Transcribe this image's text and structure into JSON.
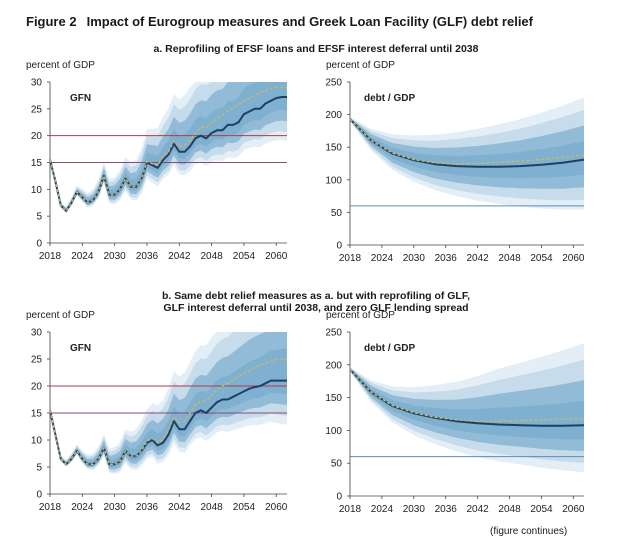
{
  "figure": {
    "number": "Figure 2",
    "title": "Impact of Eurogroup measures and Greek Loan Facility (GLF) debt relief",
    "subtitle_a": "a. Reprofiling of EFSF loans and EFSF interest deferral until 2038",
    "subtitle_b_line1": "b. Same debt relief measures as a. but with reprofiling of GLF,",
    "subtitle_b_line2": "GLF interest deferral until 2038, and zero GLF lending spread",
    "continues": "(figure continues)"
  },
  "colors": {
    "central": "#1f3f66",
    "dashed": "#c8b86a",
    "fan_light": "#e4eef6",
    "fan_mid": "#c6dceb",
    "fan_dark": "#7fb0cf",
    "ref_red": "#b23a48",
    "ref_purple": "#8a4a78",
    "ref_blue": "#5b8db8"
  },
  "chart_data": [
    {
      "id": "a-gfn",
      "type": "area",
      "panel_label": "GFN",
      "ylabel": "percent of GDP",
      "xlim": [
        2018,
        2062
      ],
      "ylim": [
        0,
        30
      ],
      "xticks": [
        "2018",
        "2024",
        "2030",
        "2036",
        "2042",
        "2048",
        "2054",
        "2060"
      ],
      "yticks": [
        "0",
        "5",
        "10",
        "15",
        "20",
        "25",
        "30"
      ],
      "reference_lines": [
        {
          "y": 20,
          "color": "ref_red"
        },
        {
          "y": 15,
          "color": "ref_purple"
        }
      ],
      "x": [
        2018,
        2019,
        2020,
        2021,
        2022,
        2023,
        2024,
        2025,
        2026,
        2027,
        2028,
        2029,
        2030,
        2031,
        2032,
        2033,
        2034,
        2035,
        2036,
        2037,
        2038,
        2039,
        2040,
        2041,
        2042,
        2043,
        2044,
        2045,
        2046,
        2047,
        2048,
        2049,
        2050,
        2051,
        2052,
        2053,
        2054,
        2055,
        2056,
        2057,
        2058,
        2059,
        2060,
        2061,
        2062
      ],
      "central": [
        15.5,
        11.5,
        7,
        6,
        7.5,
        9.5,
        8.5,
        7.5,
        8,
        9.5,
        12.5,
        9,
        9,
        10,
        12,
        10.5,
        10.5,
        12,
        15,
        14.5,
        14,
        15.5,
        16.5,
        18.5,
        17,
        17,
        18,
        19.5,
        20,
        19.5,
        20.5,
        21,
        21,
        22,
        22,
        22.5,
        24,
        24.5,
        25,
        25,
        26,
        26.5,
        27,
        27.2,
        27.2
      ],
      "dashed": [
        15.5,
        11.5,
        7,
        6,
        7.5,
        9.5,
        8.5,
        7.5,
        8,
        9.5,
        12.5,
        9,
        9,
        10,
        12,
        10.5,
        10.5,
        12,
        15.2,
        14.8,
        14.5,
        16,
        17,
        19,
        18,
        18.2,
        19.2,
        20.5,
        21.5,
        21.5,
        22.5,
        23.2,
        23.8,
        24.6,
        25.2,
        25.8,
        26.5,
        27,
        27.5,
        28,
        28.4,
        28.7,
        29,
        29,
        29
      ],
      "spread_upper": [
        0.5,
        0.5,
        0.6,
        0.8,
        1,
        1.2,
        1.5,
        1.8,
        2,
        2.3,
        2.6,
        2.9,
        3.2,
        3.6,
        4,
        4.5,
        5,
        5.6,
        6.2,
        6.8,
        7.4,
        8,
        8.6,
        9.2,
        9.8,
        10.5,
        11,
        11.5,
        12,
        12.5,
        13,
        13.5,
        14,
        14.5,
        15,
        15.5,
        16,
        16.5,
        17,
        17.5,
        18,
        18.5,
        19,
        19.5,
        20
      ],
      "spread_lower": [
        0.3,
        0.3,
        0.4,
        0.5,
        0.6,
        0.7,
        0.8,
        0.9,
        1,
        1.2,
        1.4,
        1.6,
        1.8,
        2,
        2.2,
        2.4,
        2.6,
        2.8,
        3,
        3.2,
        3.4,
        3.6,
        3.8,
        4,
        4.2,
        4.4,
        4.6,
        4.8,
        5,
        5.2,
        5.4,
        5.6,
        5.8,
        6,
        6.2,
        6.4,
        6.6,
        6.8,
        7,
        7.2,
        7.4,
        7.6,
        7.8,
        8,
        8.2
      ]
    },
    {
      "id": "a-debt",
      "type": "area",
      "panel_label": "debt / GDP",
      "ylabel": "percent of GDP",
      "xlim": [
        2018,
        2062
      ],
      "ylim": [
        0,
        250
      ],
      "xticks": [
        "2018",
        "2024",
        "2030",
        "2036",
        "2042",
        "2048",
        "2054",
        "2060"
      ],
      "yticks": [
        "0",
        "50",
        "100",
        "150",
        "200",
        "250"
      ],
      "reference_lines": [
        {
          "y": 60,
          "color": "ref_blue"
        }
      ],
      "x": [
        2018,
        2022,
        2026,
        2030,
        2034,
        2038,
        2042,
        2046,
        2050,
        2054,
        2058,
        2062
      ],
      "central": [
        193,
        160,
        140,
        130,
        124,
        121,
        120,
        120,
        121,
        123,
        126,
        131
      ],
      "dashed": [
        193,
        160,
        141,
        131,
        126,
        124,
        125,
        127,
        129,
        131,
        134,
        138
      ],
      "spread_upper": [
        3,
        18,
        30,
        38,
        45,
        52,
        58,
        65,
        72,
        80,
        88,
        95
      ],
      "spread_lower": [
        3,
        15,
        25,
        33,
        40,
        46,
        52,
        57,
        62,
        67,
        72,
        77
      ]
    },
    {
      "id": "b-gfn",
      "type": "area",
      "panel_label": "GFN",
      "ylabel": "percent of GDP",
      "xlim": [
        2018,
        2062
      ],
      "ylim": [
        0,
        30
      ],
      "xticks": [
        "2018",
        "2024",
        "2030",
        "2036",
        "2042",
        "2048",
        "2054",
        "2060"
      ],
      "yticks": [
        "0",
        "5",
        "10",
        "15",
        "20",
        "25",
        "30"
      ],
      "reference_lines": [
        {
          "y": 20,
          "color": "ref_red"
        },
        {
          "y": 15,
          "color": "ref_purple"
        }
      ],
      "x": [
        2018,
        2019,
        2020,
        2021,
        2022,
        2023,
        2024,
        2025,
        2026,
        2027,
        2028,
        2029,
        2030,
        2031,
        2032,
        2033,
        2034,
        2035,
        2036,
        2037,
        2038,
        2039,
        2040,
        2041,
        2042,
        2043,
        2044,
        2045,
        2046,
        2047,
        2048,
        2049,
        2050,
        2051,
        2052,
        2053,
        2054,
        2055,
        2056,
        2057,
        2058,
        2059,
        2060,
        2061,
        2062
      ],
      "central": [
        15.5,
        11,
        6.5,
        5.5,
        6.5,
        8,
        6.5,
        5.5,
        5.5,
        6.5,
        8.5,
        5.5,
        5.5,
        6,
        8,
        7,
        7,
        8,
        9.5,
        10,
        9,
        9.5,
        11,
        13.5,
        12,
        12,
        13.5,
        15,
        15.5,
        15,
        16,
        17,
        17.5,
        17.5,
        18,
        18.5,
        19,
        19.5,
        19.8,
        20,
        20.5,
        21,
        21,
        21,
        21
      ],
      "dashed": [
        15.5,
        11,
        6.5,
        5.5,
        6.5,
        8,
        6.5,
        5.5,
        5.5,
        6.5,
        8.5,
        5.5,
        5.5,
        6,
        8,
        7,
        7,
        8,
        9.8,
        10.3,
        9.5,
        10.2,
        11.8,
        14.3,
        13.2,
        13.5,
        15,
        16.5,
        17.2,
        17.3,
        18.3,
        19.3,
        20,
        20.5,
        21.1,
        21.7,
        22.3,
        22.9,
        23.4,
        23.8,
        24.3,
        24.6,
        24.9,
        25,
        25
      ],
      "spread_upper": [
        0.5,
        0.5,
        0.6,
        0.8,
        1,
        1.2,
        1.5,
        1.8,
        2,
        2.3,
        2.6,
        2.9,
        3.2,
        3.6,
        4,
        4.5,
        5,
        5.6,
        6.2,
        6.8,
        7.4,
        8,
        8.6,
        9.2,
        9.8,
        10.5,
        11,
        11.5,
        12,
        12.5,
        13,
        13.5,
        14,
        14.5,
        15,
        15.5,
        16,
        16.5,
        17,
        17.5,
        18,
        18.5,
        19,
        19.5,
        20
      ],
      "spread_lower": [
        0.3,
        0.3,
        0.4,
        0.5,
        0.6,
        0.7,
        0.8,
        0.9,
        1,
        1.2,
        1.4,
        1.6,
        1.8,
        2,
        2.2,
        2.4,
        2.6,
        2.8,
        3,
        3.2,
        3.4,
        3.6,
        3.8,
        4,
        4.2,
        4.4,
        4.6,
        4.8,
        5,
        5.2,
        5.4,
        5.6,
        5.8,
        6,
        6.2,
        6.4,
        6.6,
        6.8,
        7,
        7.2,
        7.4,
        7.6,
        7.8,
        8,
        8.2
      ]
    },
    {
      "id": "b-debt",
      "type": "area",
      "panel_label": "debt / GDP",
      "ylabel": "percent of GDP",
      "xlim": [
        2018,
        2062
      ],
      "ylim": [
        0,
        250
      ],
      "xticks": [
        "2018",
        "2024",
        "2030",
        "2036",
        "2042",
        "2048",
        "2054",
        "2060"
      ],
      "yticks": [
        "0",
        "50",
        "100",
        "150",
        "200",
        "250"
      ],
      "reference_lines": [
        {
          "y": 60,
          "color": "ref_blue"
        }
      ],
      "x": [
        2018,
        2022,
        2026,
        2030,
        2034,
        2038,
        2042,
        2046,
        2050,
        2054,
        2058,
        2062
      ],
      "central": [
        193,
        158,
        137,
        126,
        119,
        114,
        111,
        109,
        108,
        107,
        107,
        108
      ],
      "dashed": [
        193,
        158,
        138,
        127,
        120,
        116,
        114,
        114,
        115,
        116,
        117,
        118
      ],
      "spread_upper": [
        3,
        18,
        30,
        40,
        50,
        60,
        72,
        85,
        95,
        105,
        115,
        125
      ],
      "spread_lower": [
        3,
        15,
        25,
        33,
        40,
        46,
        52,
        56,
        60,
        64,
        68,
        72
      ]
    }
  ]
}
